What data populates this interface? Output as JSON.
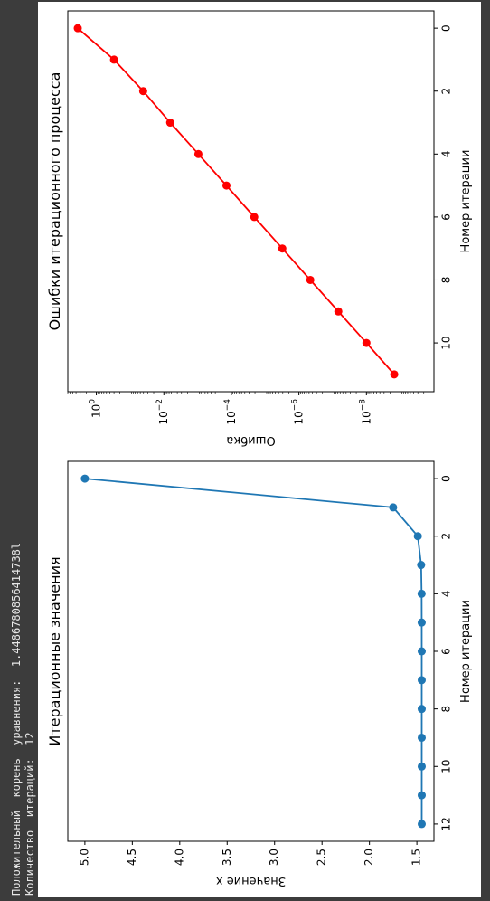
{
  "console": {
    "root_line": "Положительный  корень  уравнения:  1.4486780856414738l",
    "iter_line": "Количество  итераций:  12"
  },
  "chart_data": [
    {
      "type": "line",
      "title": "Итерационные значения",
      "xlabel": "Номер итерации",
      "ylabel": "Значение x",
      "x": [
        0,
        1,
        2,
        3,
        4,
        5,
        6,
        7,
        8,
        9,
        10,
        11,
        12
      ],
      "values": [
        5.0,
        1.75,
        1.49,
        1.455,
        1.45,
        1.449,
        1.4487,
        1.4487,
        1.4487,
        1.4487,
        1.4487,
        1.4487,
        1.4487
      ],
      "xlim": [
        -0.6,
        12.6
      ],
      "ylim": [
        1.32,
        5.18
      ],
      "xticks": [
        0,
        2,
        4,
        6,
        8,
        10,
        12
      ],
      "yticks": [
        5.0,
        4.5,
        4.0,
        3.5,
        3.0,
        2.5,
        2.0,
        1.5
      ],
      "xtick_labels": [
        "0",
        "2",
        "4",
        "6",
        "8",
        "10",
        "12"
      ],
      "ytick_labels": [
        "5.0",
        "4.5",
        "4.0",
        "3.5",
        "3.0",
        "2.5",
        "2.0",
        "1.5"
      ],
      "color": "#1f77b4",
      "marker": "circle",
      "grid": false,
      "orientation": "rotated 90° clockwise"
    },
    {
      "type": "line",
      "title": "Ошибки итерационного процесса",
      "xlabel": "Номер итерации",
      "ylabel": "Ошибка",
      "yscale": "log",
      "x": [
        0,
        1,
        2,
        3,
        4,
        5,
        6,
        7,
        8,
        9,
        10,
        11
      ],
      "values": [
        3.55,
        0.3,
        0.041,
        0.0065,
        0.00095,
        0.00014,
        2.1e-05,
        3.1e-06,
        4.6e-07,
        6.8e-08,
        1e-08,
        1.5e-09
      ],
      "xlim": [
        -0.55,
        11.55
      ],
      "ylim": [
        1e-10,
        7
      ],
      "xticks": [
        0,
        2,
        4,
        6,
        8,
        10
      ],
      "yticks": [
        1,
        0.01,
        0.0001,
        1e-06,
        1e-08
      ],
      "xtick_labels": [
        "0",
        "2",
        "4",
        "6",
        "8",
        "10"
      ],
      "ytick_labels": [
        [
          "10",
          "0"
        ],
        [
          "10",
          "−2"
        ],
        [
          "10",
          "−4"
        ],
        [
          "10",
          "−6"
        ],
        [
          "10",
          "−8"
        ]
      ],
      "color": "#ff0000",
      "marker": "circle",
      "grid": false,
      "orientation": "rotated 90° clockwise"
    }
  ]
}
